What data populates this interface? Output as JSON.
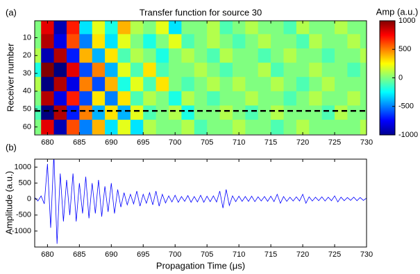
{
  "chart_data": [
    {
      "type": "heatmap",
      "title": "Transfer function for source 30",
      "panel_label": "(a)",
      "ylabel": "Receiver number",
      "colorbar_label": "Amp (a.u.)",
      "clim": [
        -1000,
        1000
      ],
      "cticks": [
        1000,
        500,
        0,
        -500,
        -1000
      ],
      "xlim": [
        678,
        730
      ],
      "xticks": [
        680,
        685,
        690,
        695,
        700,
        705,
        710,
        715,
        720,
        725,
        730
      ],
      "ylim": [
        0.5,
        64.5
      ],
      "yticks": [
        10,
        20,
        30,
        40,
        50,
        60
      ],
      "hline": 51,
      "x": [
        678,
        680,
        682,
        684,
        686,
        688,
        690,
        692,
        694,
        696,
        698,
        700,
        702,
        704,
        706,
        708,
        710,
        712,
        714,
        716,
        718,
        720,
        722,
        724,
        726,
        728,
        730
      ],
      "y": [
        4,
        12,
        20,
        28,
        36,
        44,
        52,
        60
      ],
      "z": [
        [
          0,
          800,
          -900,
          700,
          -300,
          200,
          -200,
          400,
          100,
          0,
          200,
          -300,
          0,
          0,
          100,
          -100,
          0,
          100,
          0,
          0,
          -100,
          100,
          0,
          0,
          100,
          0,
          0
        ],
        [
          0,
          900,
          -800,
          600,
          -500,
          300,
          -300,
          200,
          0,
          -200,
          0,
          200,
          -100,
          0,
          100,
          0,
          -100,
          0,
          100,
          0,
          0,
          -100,
          100,
          0,
          0,
          100,
          0
        ],
        [
          100,
          -900,
          900,
          -700,
          400,
          -400,
          300,
          -100,
          100,
          0,
          -200,
          0,
          100,
          0,
          -100,
          100,
          0,
          0,
          -100,
          0,
          100,
          0,
          0,
          -100,
          0,
          0,
          100
        ],
        [
          -200,
          1000,
          -1000,
          800,
          -600,
          500,
          -400,
          200,
          -100,
          300,
          -100,
          0,
          0,
          100,
          0,
          -100,
          0,
          0,
          100,
          -100,
          0,
          0,
          100,
          0,
          0,
          -100,
          0
        ],
        [
          100,
          -1000,
          900,
          -800,
          500,
          -600,
          400,
          -200,
          200,
          -100,
          300,
          0,
          -100,
          0,
          100,
          0,
          100,
          0,
          0,
          100,
          0,
          -100,
          0,
          100,
          0,
          0,
          0
        ],
        [
          0,
          900,
          -800,
          700,
          -600,
          300,
          -500,
          300,
          -100,
          100,
          0,
          -200,
          100,
          0,
          -100,
          0,
          0,
          100,
          0,
          0,
          -100,
          0,
          100,
          0,
          0,
          100,
          0
        ],
        [
          -100,
          -1000,
          900,
          -700,
          500,
          -400,
          300,
          -400,
          200,
          -100,
          0,
          100,
          -200,
          0,
          0,
          100,
          0,
          -100,
          0,
          100,
          0,
          0,
          0,
          -100,
          100,
          0,
          0
        ],
        [
          0,
          800,
          -900,
          600,
          -500,
          400,
          -300,
          200,
          -300,
          100,
          0,
          0,
          100,
          -100,
          0,
          0,
          100,
          0,
          0,
          -100,
          0,
          100,
          0,
          0,
          0,
          0,
          100
        ]
      ]
    },
    {
      "type": "line",
      "panel_label": "(b)",
      "xlabel": "Propagation Time (μs)",
      "ylabel": "Amplitude (a.u.)",
      "color": "#0000ff",
      "xlim": [
        678,
        730
      ],
      "xticks": [
        680,
        685,
        690,
        695,
        700,
        705,
        710,
        715,
        720,
        725,
        730
      ],
      "ylim": [
        -1500,
        1250
      ],
      "yticks": [
        1000,
        500,
        0,
        -500,
        -1000
      ],
      "x": [
        678,
        678.5,
        679,
        679.5,
        680,
        680.5,
        681,
        681.5,
        682,
        682.5,
        683,
        683.5,
        684,
        684.5,
        685,
        685.5,
        686,
        686.5,
        687,
        687.5,
        688,
        688.5,
        689,
        689.5,
        690,
        690.5,
        691,
        691.5,
        692,
        692.5,
        693,
        693.5,
        694,
        694.5,
        695,
        695.5,
        696,
        696.5,
        697,
        697.5,
        698,
        698.5,
        699,
        699.5,
        700,
        700.5,
        701,
        701.5,
        702,
        702.5,
        703,
        703.5,
        704,
        704.5,
        705,
        705.5,
        706,
        706.5,
        707,
        707.5,
        708,
        708.5,
        709,
        709.5,
        710,
        710.5,
        711,
        711.5,
        712,
        712.5,
        713,
        713.5,
        714,
        714.5,
        715,
        715.5,
        716,
        716.5,
        717,
        717.5,
        718,
        718.5,
        719,
        719.5,
        720,
        720.5,
        721,
        721.5,
        722,
        722.5,
        723,
        723.5,
        724,
        724.5,
        725,
        725.5,
        726,
        726.5,
        727,
        727.5,
        728,
        728.5,
        729,
        729.5,
        730
      ],
      "values": [
        50,
        -60,
        100,
        -150,
        1100,
        -900,
        1400,
        -1400,
        800,
        -700,
        600,
        -500,
        800,
        -700,
        500,
        -450,
        700,
        -600,
        500,
        -450,
        600,
        -550,
        400,
        -400,
        500,
        -450,
        300,
        -250,
        200,
        -180,
        150,
        -150,
        250,
        -220,
        150,
        -130,
        200,
        -180,
        250,
        -220,
        150,
        -120,
        100,
        -90,
        120,
        -100,
        80,
        -70,
        110,
        -100,
        80,
        -90,
        120,
        -100,
        90,
        -80,
        100,
        -90,
        250,
        -280,
        300,
        -200,
        100,
        -80,
        90,
        -70,
        80,
        -70,
        90,
        -80,
        70,
        -60,
        80,
        -70,
        90,
        -80,
        150,
        -130,
        80,
        -70,
        60,
        -60,
        70,
        -60,
        150,
        -130,
        70,
        -60,
        60,
        -50,
        70,
        -60,
        60,
        -50,
        100,
        -90,
        60,
        -50,
        50,
        -40,
        60,
        -50,
        50,
        -40,
        30
      ]
    }
  ]
}
